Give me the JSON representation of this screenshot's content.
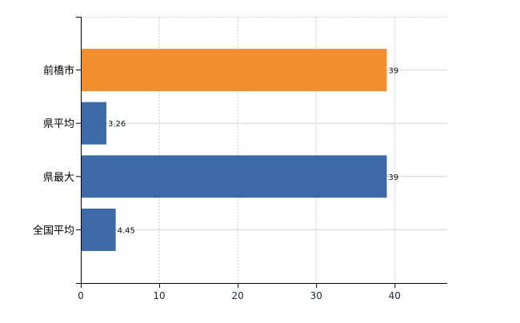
{
  "chart_data": {
    "type": "bar",
    "orientation": "horizontal",
    "categories": [
      "前橋市",
      "県平均",
      "県最大",
      "全国平均"
    ],
    "values": [
      39,
      3.26,
      39,
      4.45
    ],
    "data_labels": [
      "39",
      "3.26",
      "39",
      "4.45"
    ],
    "bar_colors": [
      "#f28f30",
      "#3c6aa6",
      "#3c6aa6",
      "#3c6aa6"
    ],
    "xlim": [
      0,
      46.7
    ],
    "xticks": [
      0,
      10,
      20,
      30,
      40
    ],
    "xtick_labels": [
      "0",
      "10",
      "20",
      "30",
      "40"
    ],
    "grid": true,
    "title": "",
    "xlabel": "",
    "ylabel": ""
  }
}
